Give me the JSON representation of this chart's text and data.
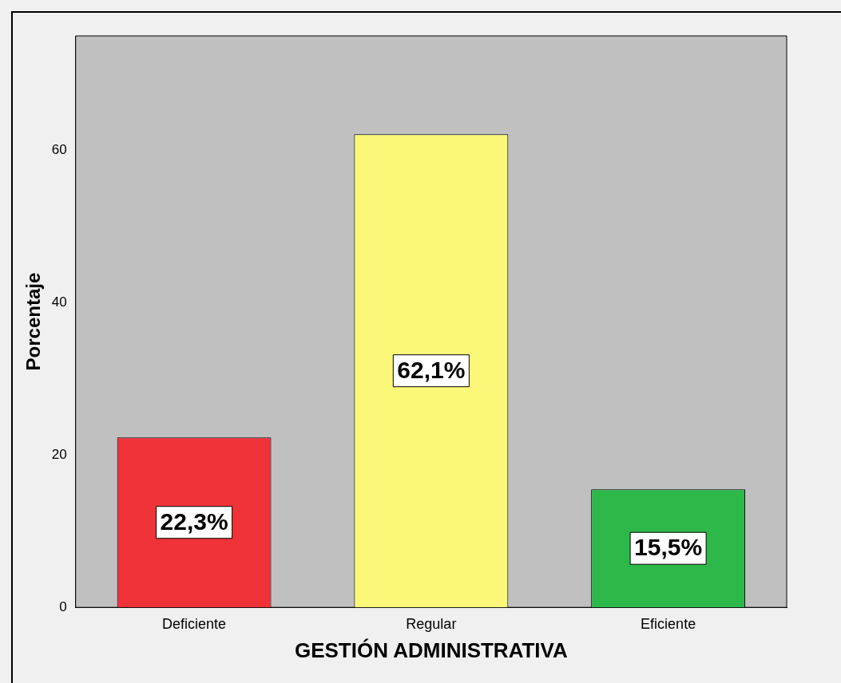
{
  "chart_data": {
    "type": "bar",
    "xlabel": "GESTIÓN ADMINISTRATIVA",
    "ylabel": "Porcentaje",
    "categories": [
      "Deficiente",
      "Regular",
      "Eficiente"
    ],
    "values": [
      22.3,
      62.1,
      15.5
    ],
    "colors": [
      "#ef3339",
      "#fbf778",
      "#2db84a"
    ],
    "value_labels": [
      "22,3%",
      "62,1%",
      "15,5%"
    ],
    "ylim": [
      0,
      75
    ],
    "yticks": [
      0,
      20,
      40,
      60
    ]
  }
}
